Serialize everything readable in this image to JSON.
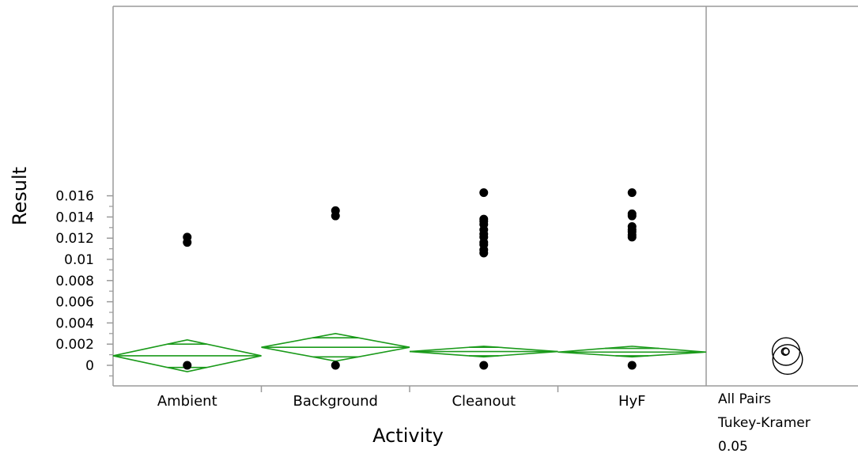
{
  "chart_data": {
    "type": "scatter",
    "subtype": "oneway-means-diamonds",
    "xlabel": "Activity",
    "ylabel": "Result",
    "categories": [
      "Ambient",
      "Background",
      "Cleanout",
      "HyF"
    ],
    "ylim": [
      -0.001,
      0.017
    ],
    "yticks": [
      0,
      0.002,
      0.004,
      0.006,
      0.008,
      0.01,
      0.012,
      0.014,
      0.016
    ],
    "ytick_labels": [
      "0",
      "0.002",
      "0.004",
      "0.006",
      "0.008",
      "0.01",
      "0.012",
      "0.014",
      "0.016"
    ],
    "points": {
      "Ambient": [
        0,
        0.0116,
        0.0121
      ],
      "Background": [
        0,
        0.0141,
        0.0146
      ],
      "Cleanout": [
        0,
        0.0106,
        0.0109,
        0.0114,
        0.0116,
        0.0121,
        0.0124,
        0.0128,
        0.0133,
        0.0136,
        0.0138,
        0.0163
      ],
      "HyF": [
        0,
        0.0121,
        0.0123,
        0.0126,
        0.0128,
        0.0131,
        0.0141,
        0.0143,
        0.0163
      ]
    },
    "means_diamonds": [
      {
        "category": "Ambient",
        "mean": 0.0009,
        "lower": -0.0006,
        "upper": 0.0024,
        "overlap_low": -0.0002,
        "overlap_high": 0.002
      },
      {
        "category": "Background",
        "mean": 0.0017,
        "lower": 0.0004,
        "upper": 0.003,
        "overlap_low": 0.0008,
        "overlap_high": 0.0026
      },
      {
        "category": "Cleanout",
        "mean": 0.0013,
        "lower": 0.0008,
        "upper": 0.0018,
        "overlap_low": 0.0009,
        "overlap_high": 0.0017
      },
      {
        "category": "HyF",
        "mean": 0.00125,
        "lower": 0.0008,
        "upper": 0.0018,
        "overlap_low": 0.0009,
        "overlap_high": 0.0016
      }
    ],
    "comparison_circles": [
      {
        "center": 0.0013,
        "radius": 0.0013
      },
      {
        "center": 0.0013,
        "radius": 0.0014
      },
      {
        "center": 0.0013,
        "radius": 0.00035
      },
      {
        "center": 0.0013,
        "radius": 0.0003
      }
    ],
    "comparison_label": [
      "All Pairs",
      "Tukey-Kramer",
      "0.05"
    ],
    "colors": {
      "diamond": "#1a9a1a",
      "points": "#000000",
      "axis": "#9a9a9a"
    }
  }
}
